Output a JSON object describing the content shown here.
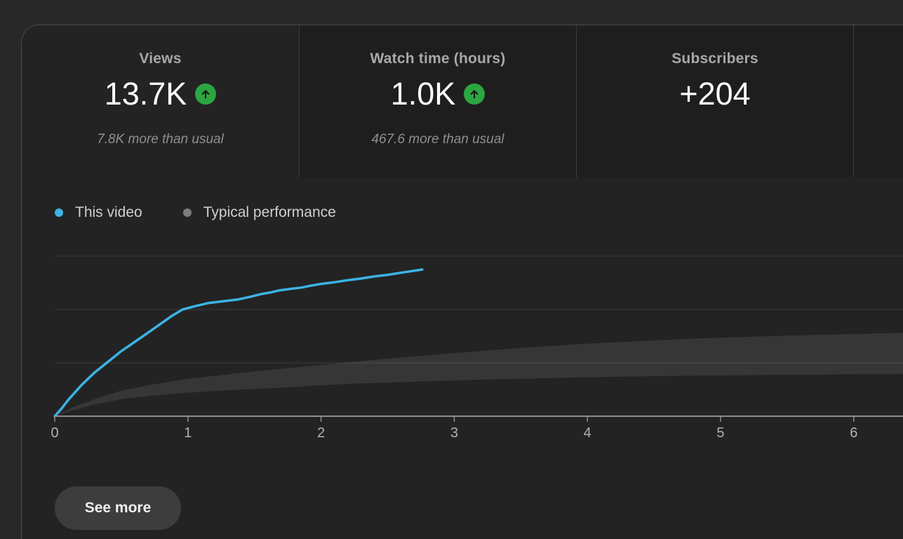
{
  "colors": {
    "page_bg": "#282828",
    "card_bg": "#232323",
    "inactive_tab_bg": "#1e1e1e",
    "card_border": "#4b4b4b",
    "tab_divider": "#3d3d3d",
    "accent_blue": "#3bb4e5",
    "typical_gray": "#7d7d7d",
    "positive_green": "#2ba640",
    "button_bg": "#3d3d3d"
  },
  "tabs": [
    {
      "id": "views",
      "label": "Views",
      "value": "13.7K",
      "trend": "up",
      "delta": "7.8K more than usual",
      "selected": true
    },
    {
      "id": "watch-time",
      "label": "Watch time (hours)",
      "value": "1.0K",
      "trend": "up",
      "delta": "467.6 more than usual",
      "selected": false
    },
    {
      "id": "subscribers",
      "label": "Subscribers",
      "value": "+204",
      "trend": null,
      "delta": "",
      "selected": false
    },
    {
      "id": "extra",
      "label": "",
      "value": "",
      "trend": null,
      "delta": "",
      "selected": false
    }
  ],
  "legend": [
    {
      "label": "This video",
      "color": "#3bb4e5"
    },
    {
      "label": "Typical performance",
      "color": "#7d7d7d"
    }
  ],
  "see_more_label": "See more",
  "chart_data": {
    "type": "line",
    "title": "",
    "xlabel": "",
    "ylabel": "",
    "xlim": [
      0,
      6.37
    ],
    "ylim": [
      0,
      15000
    ],
    "x_ticks": [
      0,
      1,
      2,
      3,
      4,
      5,
      6
    ],
    "y_gridlines": [
      5000,
      10000,
      15000
    ],
    "grid_color": "#3d3d3d",
    "axis_color": "#8f8f8f",
    "legend_position": "top-left",
    "series": [
      {
        "name": "This video",
        "type": "line",
        "color": "#3bb4e5",
        "points": [
          [
            0,
            0
          ],
          [
            0.05,
            700
          ],
          [
            0.1,
            1500
          ],
          [
            0.15,
            2200
          ],
          [
            0.2,
            2900
          ],
          [
            0.25,
            3500
          ],
          [
            0.3,
            4100
          ],
          [
            0.35,
            4600
          ],
          [
            0.4,
            5100
          ],
          [
            0.45,
            5600
          ],
          [
            0.5,
            6100
          ],
          [
            0.57,
            6700
          ],
          [
            0.64,
            7300
          ],
          [
            0.72,
            8000
          ],
          [
            0.8,
            8700
          ],
          [
            0.88,
            9400
          ],
          [
            0.96,
            10000
          ],
          [
            1.05,
            10300
          ],
          [
            1.15,
            10600
          ],
          [
            1.25,
            10750
          ],
          [
            1.38,
            10950
          ],
          [
            1.47,
            11200
          ],
          [
            1.55,
            11450
          ],
          [
            1.62,
            11600
          ],
          [
            1.69,
            11800
          ],
          [
            1.78,
            11950
          ],
          [
            1.85,
            12050
          ],
          [
            1.93,
            12250
          ],
          [
            2.0,
            12400
          ],
          [
            2.1,
            12550
          ],
          [
            2.2,
            12750
          ],
          [
            2.3,
            12900
          ],
          [
            2.4,
            13100
          ],
          [
            2.5,
            13250
          ],
          [
            2.6,
            13450
          ],
          [
            2.68,
            13600
          ],
          [
            2.76,
            13750
          ]
        ]
      },
      {
        "name": "Typical performance",
        "type": "band",
        "color": "rgba(255,255,255,0.09)",
        "points": [
          [
            0,
            0,
            0
          ],
          [
            0.15,
            600,
            900
          ],
          [
            0.3,
            1100,
            1600
          ],
          [
            0.5,
            1600,
            2400
          ],
          [
            0.75,
            1950,
            3000
          ],
          [
            1.0,
            2200,
            3500
          ],
          [
            1.25,
            2400,
            3850
          ],
          [
            1.5,
            2550,
            4200
          ],
          [
            1.75,
            2700,
            4500
          ],
          [
            2.0,
            2900,
            4800
          ],
          [
            2.25,
            3050,
            5100
          ],
          [
            2.5,
            3150,
            5400
          ],
          [
            2.75,
            3250,
            5650
          ],
          [
            3.0,
            3350,
            5900
          ],
          [
            3.25,
            3450,
            6150
          ],
          [
            3.5,
            3500,
            6400
          ],
          [
            3.75,
            3580,
            6600
          ],
          [
            4.0,
            3650,
            6800
          ],
          [
            4.25,
            3700,
            6950
          ],
          [
            4.5,
            3750,
            7100
          ],
          [
            4.75,
            3790,
            7250
          ],
          [
            5.0,
            3820,
            7350
          ],
          [
            5.25,
            3850,
            7450
          ],
          [
            5.5,
            3880,
            7550
          ],
          [
            5.75,
            3910,
            7630
          ],
          [
            6.0,
            3930,
            7700
          ],
          [
            6.37,
            3960,
            7800
          ]
        ]
      }
    ]
  }
}
